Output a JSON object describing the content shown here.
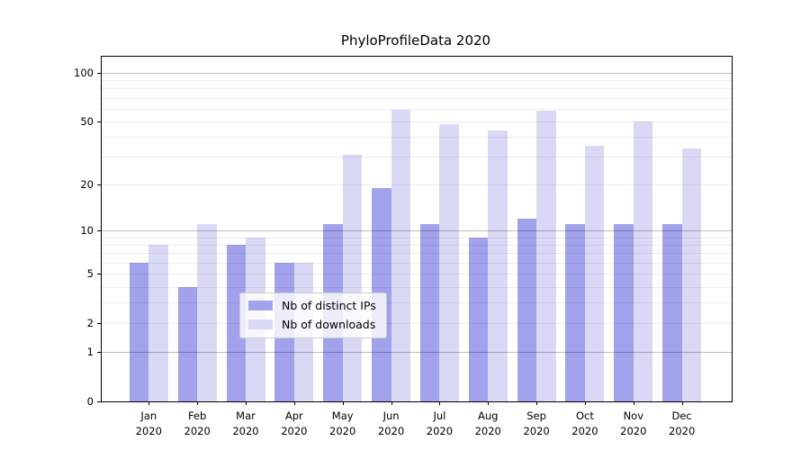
{
  "title": "PhyloProfileData 2020",
  "chart_data": {
    "type": "bar",
    "title": "PhyloProfileData 2020",
    "xlabel": "",
    "ylabel": "",
    "yscale": "log1p",
    "ylim": [
      0,
      125
    ],
    "grid": "on",
    "legend_position": "lower center",
    "year": "2020",
    "months": [
      "Jan",
      "Feb",
      "Mar",
      "Apr",
      "May",
      "Jun",
      "Jul",
      "Aug",
      "Sep",
      "Oct",
      "Nov",
      "Dec"
    ],
    "categories": [
      "Jan 2020",
      "Feb 2020",
      "Mar 2020",
      "Apr 2020",
      "May 2020",
      "Jun 2020",
      "Jul 2020",
      "Aug 2020",
      "Sep 2020",
      "Oct 2020",
      "Nov 2020",
      "Dec 2020"
    ],
    "yticks": [
      0,
      1,
      2,
      5,
      10,
      20,
      50,
      100
    ],
    "gridlines": [
      1,
      2,
      3,
      4,
      5,
      6,
      7,
      8,
      9,
      10,
      20,
      30,
      40,
      50,
      60,
      70,
      80,
      90,
      100
    ],
    "major_gridlines": [
      1,
      10,
      100
    ],
    "series": [
      {
        "name": "Nb of distinct IPs",
        "color": "#a2a2ec",
        "values": [
          6,
          4,
          8,
          6,
          11,
          19,
          11,
          9,
          12,
          11,
          11,
          11
        ]
      },
      {
        "name": "Nb of downloads",
        "color": "#d9d9f6",
        "values": [
          8,
          11,
          9,
          6,
          31,
          59,
          48,
          44,
          58,
          35,
          50,
          34
        ]
      }
    ]
  },
  "colors": {
    "background": "#ffffff",
    "axis": "#000000",
    "grid_minor": "#ececec",
    "grid_major": "#bdbdbd",
    "legend_border": "#cccccc"
  }
}
